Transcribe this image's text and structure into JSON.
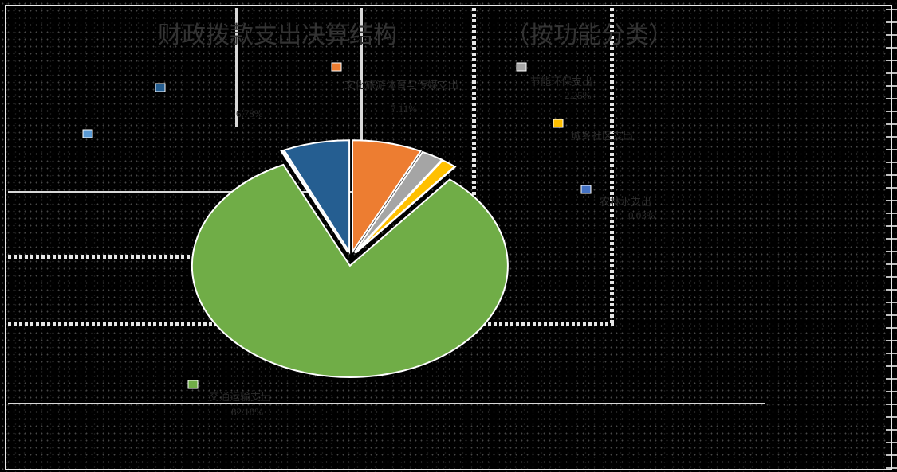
{
  "chart_data": {
    "type": "pie",
    "title": "财政拨款支出决算结构（按功能分类）",
    "title_parts": [
      "财政拨款支出决算结构",
      "（按功能分类）"
    ],
    "slices": [
      {
        "label": "文化旅游体育与传媒支出",
        "value": 7.11,
        "value_label": "7.11%",
        "color": "#ED7D31"
      },
      {
        "label": "节能环保支出",
        "value": 2.25,
        "value_label": "2.25%",
        "color": "#A5A5A5"
      },
      {
        "label": "城乡社区支出",
        "value": 1.5,
        "value_label": "",
        "color": "#FFC000"
      },
      {
        "label": "农林水支出",
        "value": 0.03,
        "value_label": "0.03%",
        "color": "#4472C4"
      },
      {
        "label": "交通运输支出",
        "value": 82.18,
        "value_label": "82.18%",
        "color": "#70AD47"
      },
      {
        "label": "",
        "value": 0.15,
        "value_label": "",
        "color": "#5B9BD5"
      },
      {
        "label": "",
        "value": 6.78,
        "value_label": "6.78%",
        "color": "#255E91"
      }
    ]
  }
}
